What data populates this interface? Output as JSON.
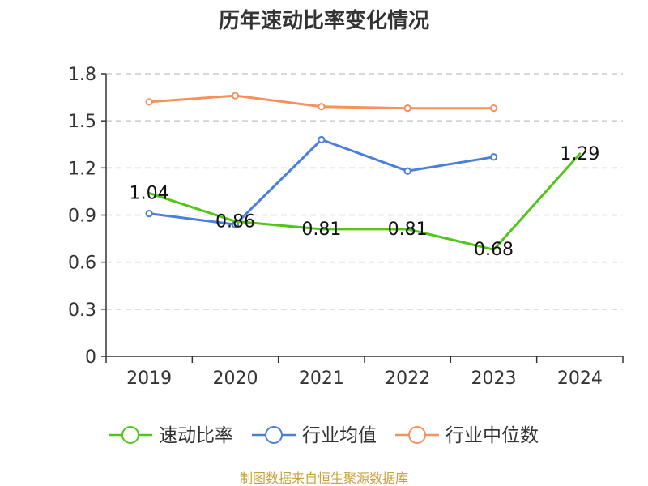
{
  "chart_data": {
    "type": "line",
    "title": "历年速动比率变化情况",
    "categories": [
      "2019",
      "2020",
      "2021",
      "2022",
      "2023",
      "2024"
    ],
    "ylim": [
      0,
      1.8
    ],
    "yticks": [
      "0",
      "0.3",
      "0.6",
      "0.9",
      "1.2",
      "1.5",
      "1.8"
    ],
    "grid": true,
    "legend_position": "bottom",
    "series": [
      {
        "name": "速动比率",
        "color": "#52c41a",
        "values": [
          1.04,
          0.86,
          0.81,
          0.81,
          0.68,
          1.29
        ],
        "labels": [
          "1.04",
          "0.86",
          "0.81",
          "0.81",
          "0.68",
          "1.29"
        ],
        "show_markers": false
      },
      {
        "name": "行业均值",
        "color": "#4a7fdc",
        "values": [
          0.91,
          0.84,
          1.38,
          1.18,
          1.27,
          null
        ],
        "show_markers": true
      },
      {
        "name": "行业中位数",
        "color": "#f5915d",
        "values": [
          1.62,
          1.66,
          1.59,
          1.58,
          1.58,
          null
        ],
        "show_markers": true
      }
    ],
    "source": "制图数据来自恒生聚源数据库",
    "source_color": "#c8a040"
  }
}
